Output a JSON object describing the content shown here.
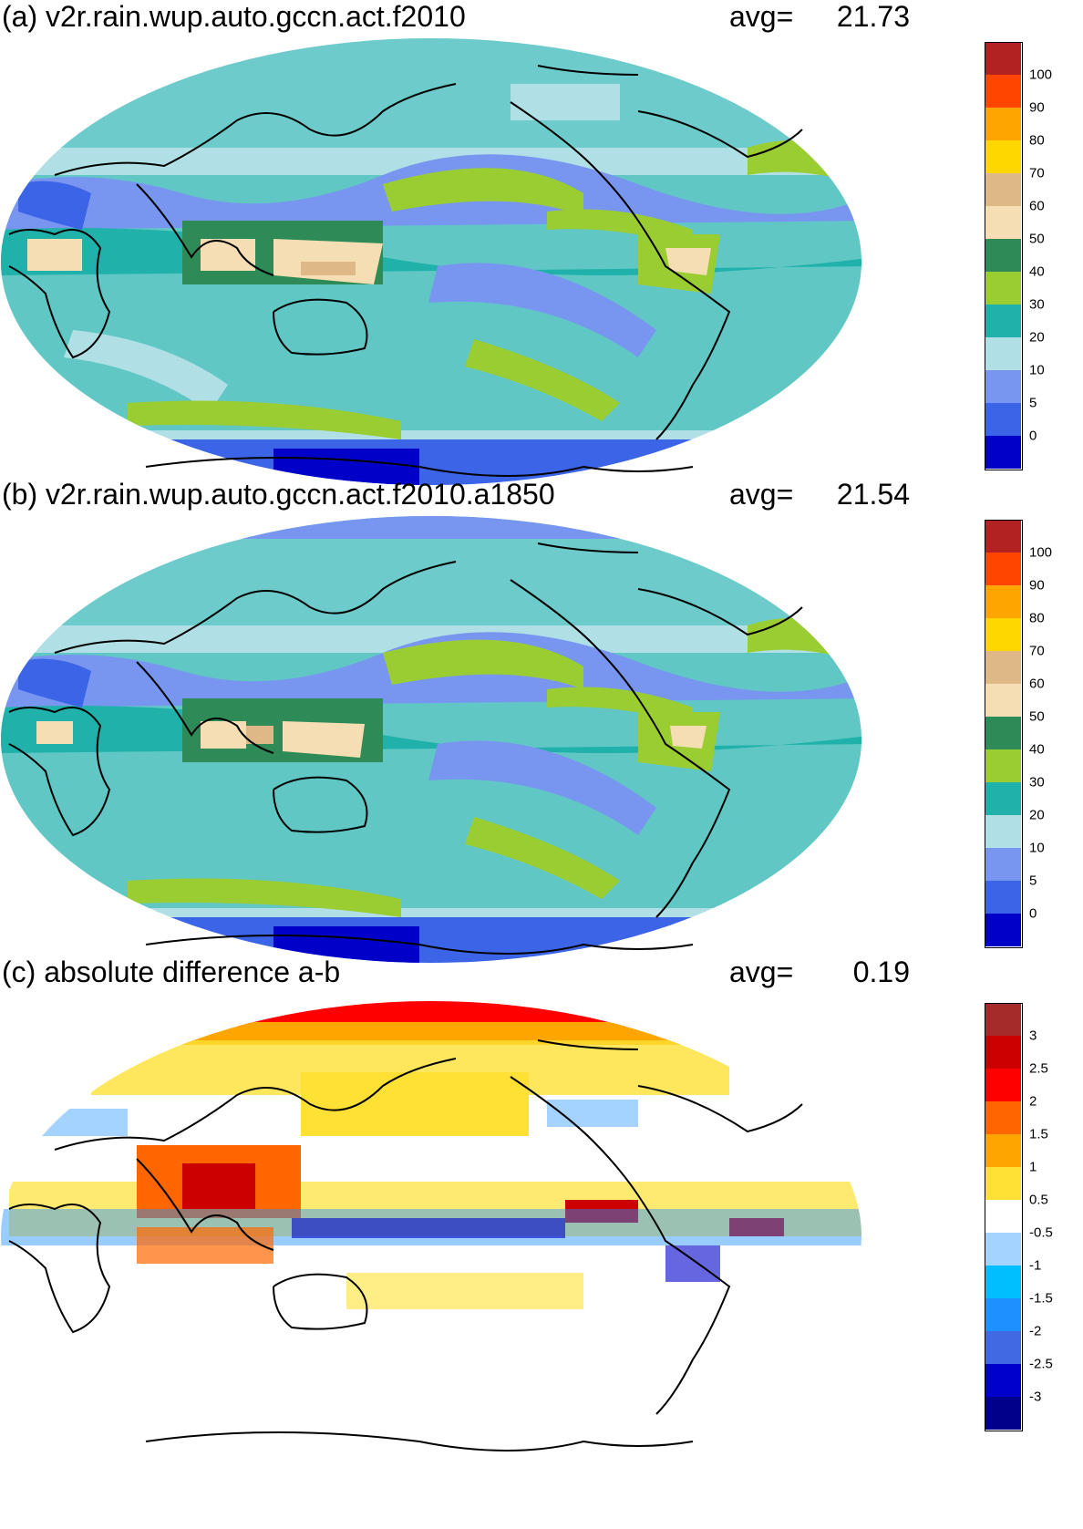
{
  "panels": [
    {
      "id": "a",
      "title": "(a) v2r.rain.wup.auto.gccn.act.f2010",
      "avg_label": "avg=",
      "avg_value": "21.73",
      "colorbar": {
        "colors": [
          "#0000c8",
          "#3c64e6",
          "#7896f0",
          "#b0e0e6",
          "#20b2aa",
          "#9acd32",
          "#2e8b57",
          "#f5deb3",
          "#deb887",
          "#ffd700",
          "#ffa500",
          "#ff4500",
          "#b22222"
        ],
        "labels": [
          "0",
          "5",
          "10",
          "20",
          "30",
          "40",
          "50",
          "60",
          "70",
          "80",
          "90",
          "100"
        ]
      }
    },
    {
      "id": "b",
      "title": "(b) v2r.rain.wup.auto.gccn.act.f2010.a1850",
      "avg_label": "avg=",
      "avg_value": "21.54",
      "colorbar": {
        "colors": [
          "#0000c8",
          "#3c64e6",
          "#7896f0",
          "#b0e0e6",
          "#20b2aa",
          "#9acd32",
          "#2e8b57",
          "#f5deb3",
          "#deb887",
          "#ffd700",
          "#ffa500",
          "#ff4500",
          "#b22222"
        ],
        "labels": [
          "0",
          "5",
          "10",
          "20",
          "30",
          "40",
          "50",
          "60",
          "70",
          "80",
          "90",
          "100"
        ]
      }
    },
    {
      "id": "c",
      "title": "(c) absolute difference a-b",
      "avg_label": "avg=",
      "avg_value": "0.19",
      "colorbar": {
        "colors": [
          "#00008b",
          "#0000cd",
          "#4169e1",
          "#1e90ff",
          "#00bfff",
          "#a4d3ff",
          "#ffffff",
          "#ffe135",
          "#ffa500",
          "#ff6600",
          "#ff0000",
          "#cc0000",
          "#a52a2a"
        ],
        "labels": [
          "-3",
          "-2.5",
          "-2",
          "-1.5",
          "-1",
          "-0.5",
          "0.5",
          "1",
          "1.5",
          "2",
          "2.5",
          "3"
        ]
      }
    }
  ]
}
